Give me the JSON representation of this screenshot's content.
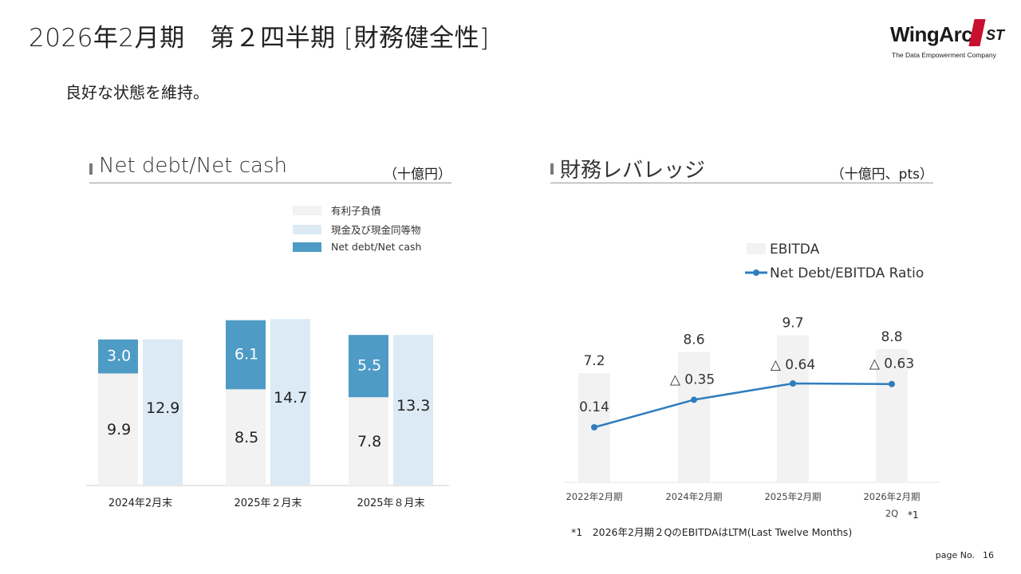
{
  "header": {
    "title": "2026年2月期　第２四半期 [財務健全性]",
    "subtitle": "良好な状態を維持。"
  },
  "logo": {
    "word": "WingArc",
    "mark": "1",
    "suffix": "ST",
    "tagline": "The Data Empowerment Company"
  },
  "left_section": {
    "title": "Net debt/Net cash",
    "unit": "（十億円）"
  },
  "right_section": {
    "title": "財務レバレッジ",
    "unit": "（十億円、pts）"
  },
  "colors": {
    "debt": "#f2f2f2",
    "cash": "#dbeaf5",
    "net": "#4e9bc6",
    "ebitda": "#f2f2f2",
    "ratio_line": "#2e7dbf"
  },
  "chart_data": [
    {
      "type": "bar",
      "title": "Net debt/Net cash",
      "unit": "（十億円）",
      "categories": [
        "2024年2月末",
        "2025年２月末",
        "2025年８月末"
      ],
      "series": [
        {
          "name": "有利子負債",
          "values": [
            9.9,
            8.5,
            7.8
          ]
        },
        {
          "name": "現金及び現金同等物",
          "values": [
            12.9,
            14.7,
            13.3
          ]
        },
        {
          "name": "Net debt/Net cash",
          "values": [
            3.0,
            6.1,
            5.5
          ]
        }
      ],
      "legend": [
        "有利子負債",
        "現金及び現金同等物",
        "Net debt/Net cash"
      ],
      "ylim": [
        0,
        16
      ]
    },
    {
      "type": "bar",
      "title": "財務レバレッジ",
      "unit": "（十億円、pts）",
      "categories": [
        "2022年2月期",
        "2024年2月期",
        "2025年2月期",
        "2026年2月期"
      ],
      "category_note": "2Q",
      "category_note_mark": "*1",
      "series": [
        {
          "name": "EBITDA",
          "type": "bar",
          "values": [
            7.2,
            8.6,
            9.7,
            8.8
          ],
          "labels": [
            "7.2",
            "8.6",
            "9.7",
            "8.8"
          ]
        },
        {
          "name": "Net Debt/EBITDA Ratio",
          "type": "line",
          "values": [
            0.14,
            -0.35,
            -0.64,
            -0.63
          ],
          "labels": [
            "0.14",
            "△ 0.35",
            "△ 0.64",
            "△ 0.63"
          ]
        }
      ],
      "legend": [
        "EBITDA",
        "Net Debt/EBITDA Ratio"
      ],
      "ylim_bar": [
        0,
        11.5
      ],
      "ylim_line": [
        -1.1,
        1.2
      ]
    }
  ],
  "footnote": "*1　2026年2月期２QのEBITDAはLTM(Last Twelve Months)",
  "page": {
    "label": "page No.",
    "number": "16"
  }
}
